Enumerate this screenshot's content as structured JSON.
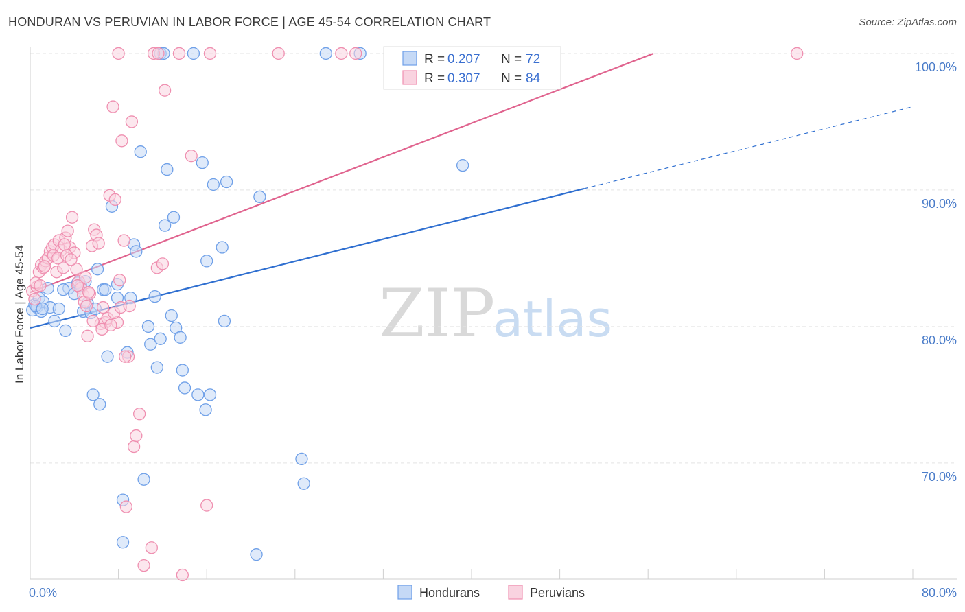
{
  "header": {
    "title": "HONDURAN VS PERUVIAN IN LABOR FORCE | AGE 45-54 CORRELATION CHART",
    "source": "Source: ZipAtlas.com"
  },
  "watermark": {
    "zip": "ZIP",
    "atlas": "atlas"
  },
  "chart_data": {
    "type": "scatter",
    "title": "HONDURAN VS PERUVIAN IN LABOR FORCE | AGE 45-54 CORRELATION CHART",
    "xlabel": "",
    "ylabel": "In Labor Force | Age 45-54",
    "xlim": [
      0,
      80
    ],
    "ylim": [
      61.5,
      100.5
    ],
    "x_tick_labels": [
      "0.0%",
      "80.0%"
    ],
    "y_ticks": [
      70,
      80,
      90,
      100
    ],
    "y_tick_labels": [
      "70.0%",
      "80.0%",
      "90.0%",
      "100.0%"
    ],
    "grid": true,
    "legend_top": [
      {
        "r_label": "R =",
        "r_value": "0.207",
        "n_label": "N =",
        "n_value": "72"
      },
      {
        "r_label": "R =",
        "r_value": "0.307",
        "n_label": "N =",
        "n_value": "84"
      }
    ],
    "legend_bottom": [
      "Hondurans",
      "Peruvians"
    ],
    "colors": {
      "honduran": "#6fa0e8",
      "honduran_fill": "#c5d9f6",
      "honduran_line": "#2f6fd0",
      "peruvian": "#ef8fb0",
      "peruvian_fill": "#f9d3e0",
      "peruvian_line": "#e0638e"
    },
    "series": [
      {
        "name": "Hondurans",
        "trend": {
          "x0": 0.0,
          "y0": 79.9,
          "x1": 50.2,
          "y1": 90.1,
          "dash_to_x": 80.0,
          "dash_to_y": 96.1
        },
        "points": [
          [
            0.2,
            81.2
          ],
          [
            0.4,
            81.6
          ],
          [
            0.6,
            81.4
          ],
          [
            0.8,
            82.1
          ],
          [
            1.0,
            81.1
          ],
          [
            1.2,
            81.8
          ],
          [
            1.6,
            82.8
          ],
          [
            1.8,
            81.4
          ],
          [
            2.2,
            80.4
          ],
          [
            2.6,
            81.3
          ],
          [
            3.2,
            79.7
          ],
          [
            3.5,
            82.8
          ],
          [
            4.0,
            82.4
          ],
          [
            4.3,
            83.2
          ],
          [
            4.6,
            83.0
          ],
          [
            4.8,
            81.1
          ],
          [
            5.2,
            81.7
          ],
          [
            5.5,
            81.0
          ],
          [
            5.7,
            75.0
          ],
          [
            5.9,
            81.3
          ],
          [
            6.1,
            84.2
          ],
          [
            6.3,
            74.3
          ],
          [
            6.6,
            82.7
          ],
          [
            6.8,
            82.7
          ],
          [
            7.0,
            77.8
          ],
          [
            7.4,
            88.8
          ],
          [
            7.9,
            83.1
          ],
          [
            7.9,
            82.1
          ],
          [
            8.4,
            67.3
          ],
          [
            8.4,
            64.2
          ],
          [
            8.8,
            78.1
          ],
          [
            9.1,
            82.1
          ],
          [
            9.4,
            86.0
          ],
          [
            9.6,
            85.5
          ],
          [
            10.0,
            92.8
          ],
          [
            10.3,
            68.8
          ],
          [
            10.7,
            80.0
          ],
          [
            10.9,
            78.7
          ],
          [
            11.3,
            82.2
          ],
          [
            11.5,
            77.0
          ],
          [
            11.8,
            79.1
          ],
          [
            12.2,
            87.4
          ],
          [
            12.4,
            91.5
          ],
          [
            12.8,
            80.8
          ],
          [
            13.0,
            88.0
          ],
          [
            13.2,
            79.9
          ],
          [
            13.6,
            79.2
          ],
          [
            13.8,
            76.8
          ],
          [
            14.0,
            75.5
          ],
          [
            15.2,
            75.0
          ],
          [
            15.6,
            92.0
          ],
          [
            15.9,
            73.9
          ],
          [
            16.0,
            84.8
          ],
          [
            16.3,
            75.0
          ],
          [
            16.6,
            90.4
          ],
          [
            17.4,
            85.8
          ],
          [
            17.6,
            80.4
          ],
          [
            17.8,
            90.6
          ],
          [
            20.5,
            63.3
          ],
          [
            20.8,
            89.5
          ],
          [
            24.6,
            70.3
          ],
          [
            24.8,
            68.5
          ],
          [
            39.2,
            91.8
          ],
          [
            11.8,
            100
          ],
          [
            12.1,
            100
          ],
          [
            14.8,
            100
          ],
          [
            26.8,
            100
          ],
          [
            29.9,
            100
          ],
          [
            0.5,
            81.5
          ],
          [
            1.1,
            81.3
          ],
          [
            3.0,
            82.7
          ],
          [
            5.0,
            83.3
          ]
        ]
      },
      {
        "name": "Peruvians",
        "trend": {
          "x0": 0.0,
          "y0": 82.5,
          "x1": 56.5,
          "y1": 100.0
        },
        "points": [
          [
            0.2,
            82.6
          ],
          [
            0.4,
            82.0
          ],
          [
            0.6,
            82.9
          ],
          [
            0.8,
            84.0
          ],
          [
            1.0,
            84.5
          ],
          [
            1.2,
            84.3
          ],
          [
            1.4,
            84.8
          ],
          [
            1.6,
            85.0
          ],
          [
            1.8,
            85.5
          ],
          [
            2.0,
            85.8
          ],
          [
            2.2,
            86.0
          ],
          [
            2.4,
            84.0
          ],
          [
            2.6,
            86.3
          ],
          [
            2.8,
            85.6
          ],
          [
            3.0,
            84.3
          ],
          [
            3.2,
            86.5
          ],
          [
            3.4,
            87.0
          ],
          [
            3.6,
            85.8
          ],
          [
            3.8,
            88.0
          ],
          [
            4.0,
            85.4
          ],
          [
            4.2,
            84.2
          ],
          [
            4.4,
            83.3
          ],
          [
            4.6,
            82.8
          ],
          [
            4.8,
            82.3
          ],
          [
            5.0,
            83.6
          ],
          [
            5.2,
            79.3
          ],
          [
            5.4,
            82.4
          ],
          [
            5.6,
            85.9
          ],
          [
            5.8,
            87.1
          ],
          [
            6.0,
            86.7
          ],
          [
            6.2,
            86.1
          ],
          [
            6.4,
            80.2
          ],
          [
            6.6,
            81.4
          ],
          [
            6.8,
            80.3
          ],
          [
            7.0,
            80.6
          ],
          [
            7.2,
            89.6
          ],
          [
            7.5,
            96.1
          ],
          [
            7.7,
            89.3
          ],
          [
            7.9,
            80.3
          ],
          [
            8.1,
            83.4
          ],
          [
            8.3,
            93.6
          ],
          [
            8.5,
            86.3
          ],
          [
            8.7,
            66.8
          ],
          [
            8.9,
            77.8
          ],
          [
            9.2,
            95.0
          ],
          [
            9.4,
            71.2
          ],
          [
            9.6,
            72.0
          ],
          [
            9.9,
            73.6
          ],
          [
            10.3,
            62.5
          ],
          [
            11.0,
            63.8
          ],
          [
            11.5,
            84.3
          ],
          [
            12.0,
            84.6
          ],
          [
            12.2,
            97.3
          ],
          [
            13.8,
            61.8
          ],
          [
            14.6,
            92.5
          ],
          [
            16.0,
            66.9
          ],
          [
            8.0,
            100
          ],
          [
            11.2,
            100
          ],
          [
            11.6,
            100
          ],
          [
            13.5,
            100
          ],
          [
            16.3,
            100
          ],
          [
            22.5,
            100
          ],
          [
            28.2,
            100
          ],
          [
            29.5,
            100
          ],
          [
            69.5,
            100
          ],
          [
            0.5,
            83.2
          ],
          [
            0.9,
            83.0
          ],
          [
            1.3,
            84.4
          ],
          [
            2.1,
            85.2
          ],
          [
            2.5,
            85.0
          ],
          [
            3.1,
            86.0
          ],
          [
            3.3,
            85.2
          ],
          [
            3.7,
            84.9
          ],
          [
            4.3,
            83.0
          ],
          [
            4.9,
            81.8
          ],
          [
            5.1,
            81.5
          ],
          [
            5.3,
            82.5
          ],
          [
            5.7,
            80.4
          ],
          [
            6.5,
            79.8
          ],
          [
            7.3,
            80.1
          ],
          [
            7.6,
            81.0
          ],
          [
            8.2,
            81.4
          ],
          [
            8.6,
            77.8
          ],
          [
            9.0,
            81.5
          ]
        ]
      }
    ]
  }
}
